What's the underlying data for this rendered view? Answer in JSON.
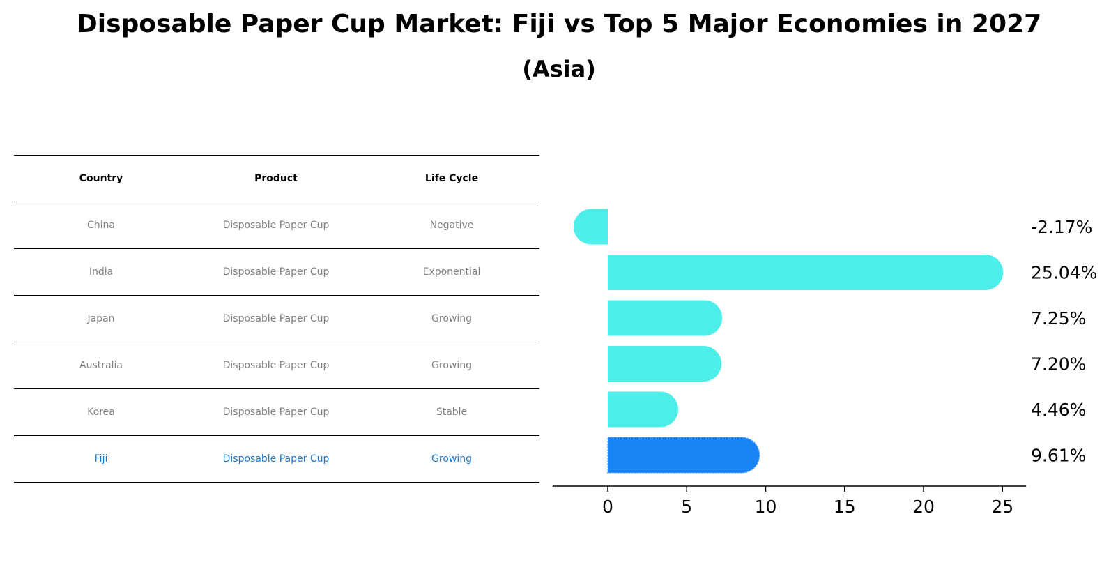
{
  "title": "Disposable Paper Cup Market: Fiji vs Top 5 Major Economies in 2027",
  "subtitle": "(Asia)",
  "colors": {
    "bar": "#4deeea",
    "highlight": "#1984f5",
    "highlight_text": "#1f77c8",
    "muted_text": "#808080"
  },
  "table": {
    "headers": [
      "Country",
      "Product",
      "Life Cycle"
    ],
    "rows": [
      [
        "China",
        "Disposable Paper Cup",
        "Negative"
      ],
      [
        "India",
        "Disposable Paper Cup",
        "Exponential"
      ],
      [
        "Japan",
        "Disposable Paper Cup",
        "Growing"
      ],
      [
        "Australia",
        "Disposable Paper Cup",
        "Growing"
      ],
      [
        "Korea",
        "Disposable Paper Cup",
        "Stable"
      ],
      [
        "Fiji",
        "Disposable Paper Cup",
        "Growing"
      ]
    ],
    "highlight_row": 5
  },
  "chart_data": {
    "type": "bar",
    "orientation": "horizontal",
    "categories": [
      "China",
      "India",
      "Japan",
      "Australia",
      "Korea",
      "Fiji"
    ],
    "values": [
      -2.17,
      25.04,
      7.25,
      7.2,
      4.46,
      9.61
    ],
    "value_labels": [
      "-2.17%",
      "25.04%",
      "7.25%",
      "7.20%",
      "4.46%",
      "9.61%"
    ],
    "highlight_category": "Fiji",
    "xlim": [
      -3.5,
      26.5
    ],
    "xticks": [
      0,
      5,
      10,
      15,
      20,
      25
    ],
    "xlabel": "",
    "ylabel": ""
  }
}
